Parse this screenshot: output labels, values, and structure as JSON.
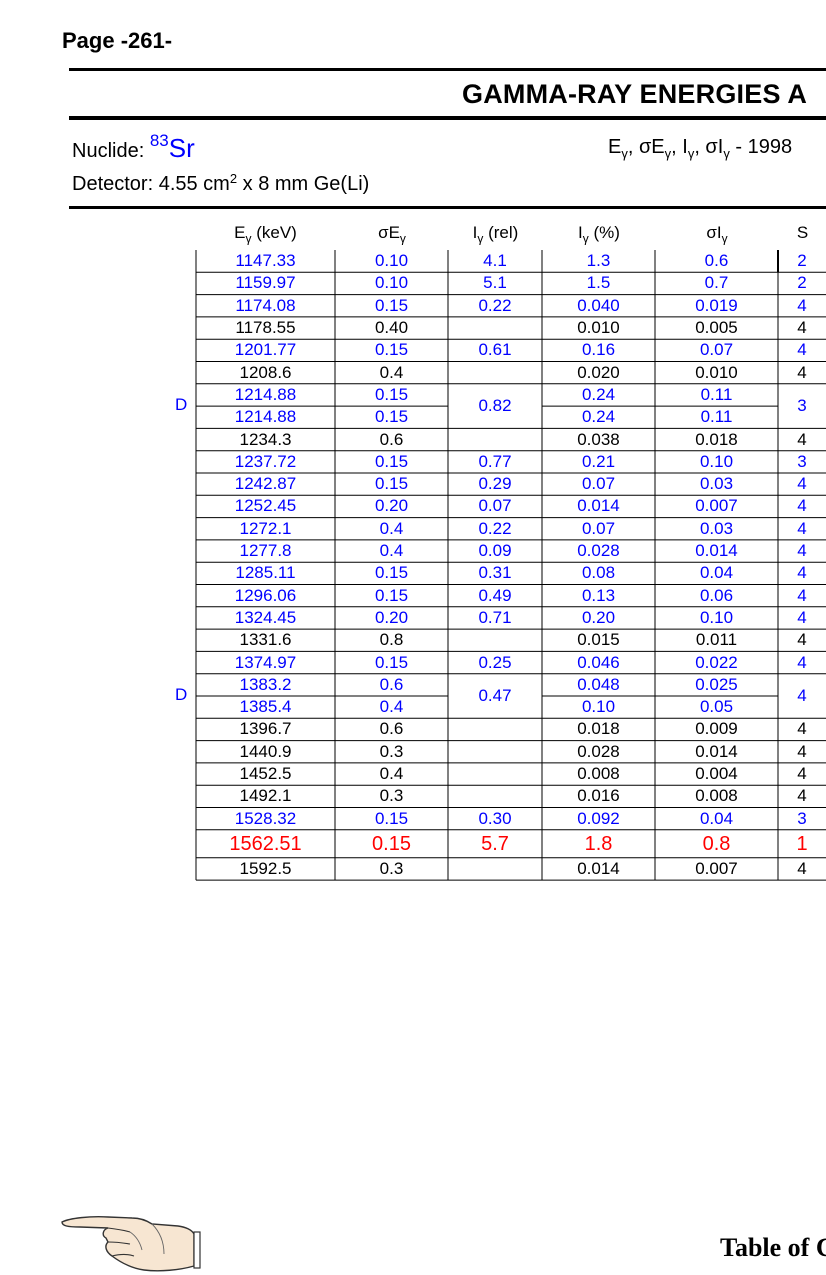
{
  "page": {
    "label": "Page -261-"
  },
  "title": "GAMMA-RAY ENERGIES A",
  "nuclide": {
    "label": "Nuclide:",
    "mass": "83",
    "symbol": "Sr"
  },
  "header_right": {
    "parts": [
      "E",
      "γ",
      ", σE",
      "γ",
      ", I",
      "γ",
      ", σI",
      "γ",
      " - 1998"
    ]
  },
  "detector": {
    "prefix": "Detector: 4.55 cm",
    "sup": "2",
    "suffix": " x 8 mm Ge(Li)"
  },
  "columns": {
    "energy": {
      "main": "E",
      "sub": "γ",
      "tail": " (keV)"
    },
    "sigma_e": {
      "main": "σE",
      "sub": "γ",
      "tail": ""
    },
    "i_rel": {
      "main": "I",
      "sub": "γ",
      "tail": " (rel)"
    },
    "i_pct": {
      "main": "I",
      "sub": "γ",
      "tail": " (%)"
    },
    "sigma_i": {
      "main": "σI",
      "sub": "γ",
      "tail": ""
    },
    "s": {
      "main": "S",
      "sub": "",
      "tail": ""
    }
  },
  "colors": {
    "blue": "#0000ff",
    "red": "#ff0000",
    "black": "#000000"
  },
  "rows": [
    {
      "e": "1147.33",
      "se": "0.10",
      "ir": "4.1",
      "ip": "1.3",
      "si": "0.6",
      "s": "2",
      "color": "blue"
    },
    {
      "e": "1159.97",
      "se": "0.10",
      "ir": "5.1",
      "ip": "1.5",
      "si": "0.7",
      "s": "2",
      "color": "blue"
    },
    {
      "e": "1174.08",
      "se": "0.15",
      "ir": "0.22",
      "ip": "0.040",
      "si": "0.019",
      "s": "4",
      "color": "blue"
    },
    {
      "e": "1178.55",
      "se": "0.40",
      "ir": "",
      "ip": "0.010",
      "si": "0.005",
      "s": "4",
      "color": "black"
    },
    {
      "e": "1201.77",
      "se": "0.15",
      "ir": "0.61",
      "ip": "0.16",
      "si": "0.07",
      "s": "4",
      "color": "blue"
    },
    {
      "e": "1208.6",
      "se": "0.4",
      "ir": "",
      "ip": "0.020",
      "si": "0.010",
      "s": "4",
      "color": "black"
    },
    {
      "e": "1214.88",
      "se": "0.15",
      "ir": "0.82",
      "ip": "0.24",
      "si": "0.11",
      "s": "3",
      "color": "blue",
      "d": "D",
      "merge": "start"
    },
    {
      "e": "1214.88",
      "se": "0.15",
      "ir": "",
      "ip": "0.24",
      "si": "0.11",
      "s": "",
      "color": "blue",
      "merge": "end"
    },
    {
      "e": "1234.3",
      "se": "0.6",
      "ir": "",
      "ip": "0.038",
      "si": "0.018",
      "s": "4",
      "color": "black"
    },
    {
      "e": "1237.72",
      "se": "0.15",
      "ir": "0.77",
      "ip": "0.21",
      "si": "0.10",
      "s": "3",
      "color": "blue"
    },
    {
      "e": "1242.87",
      "se": "0.15",
      "ir": "0.29",
      "ip": "0.07",
      "si": "0.03",
      "s": "4",
      "color": "blue"
    },
    {
      "e": "1252.45",
      "se": "0.20",
      "ir": "0.07",
      "ip": "0.014",
      "si": "0.007",
      "s": "4",
      "color": "blue"
    },
    {
      "e": "1272.1",
      "se": "0.4",
      "ir": "0.22",
      "ip": "0.07",
      "si": "0.03",
      "s": "4",
      "color": "blue"
    },
    {
      "e": "1277.8",
      "se": "0.4",
      "ir": "0.09",
      "ip": "0.028",
      "si": "0.014",
      "s": "4",
      "color": "blue"
    },
    {
      "e": "1285.11",
      "se": "0.15",
      "ir": "0.31",
      "ip": "0.08",
      "si": "0.04",
      "s": "4",
      "color": "blue"
    },
    {
      "e": "1296.06",
      "se": "0.15",
      "ir": "0.49",
      "ip": "0.13",
      "si": "0.06",
      "s": "4",
      "color": "blue"
    },
    {
      "e": "1324.45",
      "se": "0.20",
      "ir": "0.71",
      "ip": "0.20",
      "si": "0.10",
      "s": "4",
      "color": "blue"
    },
    {
      "e": "1331.6",
      "se": "0.8",
      "ir": "",
      "ip": "0.015",
      "si": "0.011",
      "s": "4",
      "color": "black"
    },
    {
      "e": "1374.97",
      "se": "0.15",
      "ir": "0.25",
      "ip": "0.046",
      "si": "0.022",
      "s": "4",
      "color": "blue"
    },
    {
      "e": "1383.2",
      "se": "0.6",
      "ir": "0.47",
      "ip": "0.048",
      "si": "0.025",
      "s": "4",
      "color": "blue",
      "d": "D",
      "merge": "start"
    },
    {
      "e": "1385.4",
      "se": "0.4",
      "ir": "",
      "ip": "0.10",
      "si": "0.05",
      "s": "",
      "color": "blue",
      "merge": "end"
    },
    {
      "e": "1396.7",
      "se": "0.6",
      "ir": "",
      "ip": "0.018",
      "si": "0.009",
      "s": "4",
      "color": "black"
    },
    {
      "e": "1440.9",
      "se": "0.3",
      "ir": "",
      "ip": "0.028",
      "si": "0.014",
      "s": "4",
      "color": "black"
    },
    {
      "e": "1452.5",
      "se": "0.4",
      "ir": "",
      "ip": "0.008",
      "si": "0.004",
      "s": "4",
      "color": "black"
    },
    {
      "e": "1492.1",
      "se": "0.3",
      "ir": "",
      "ip": "0.016",
      "si": "0.008",
      "s": "4",
      "color": "black"
    },
    {
      "e": "1528.32",
      "se": "0.15",
      "ir": "0.30",
      "ip": "0.092",
      "si": "0.04",
      "s": "3",
      "color": "blue"
    },
    {
      "e": "1562.51",
      "se": "0.15",
      "ir": "5.7",
      "ip": "1.8",
      "si": "0.8",
      "s": "1",
      "color": "red"
    },
    {
      "e": "1592.5",
      "se": "0.3",
      "ir": "",
      "ip": "0.014",
      "si": "0.007",
      "s": "4",
      "color": "black"
    }
  ],
  "footer": {
    "table_of": "Table of C"
  },
  "icons": {
    "pointer": "pointing-hand-icon"
  }
}
